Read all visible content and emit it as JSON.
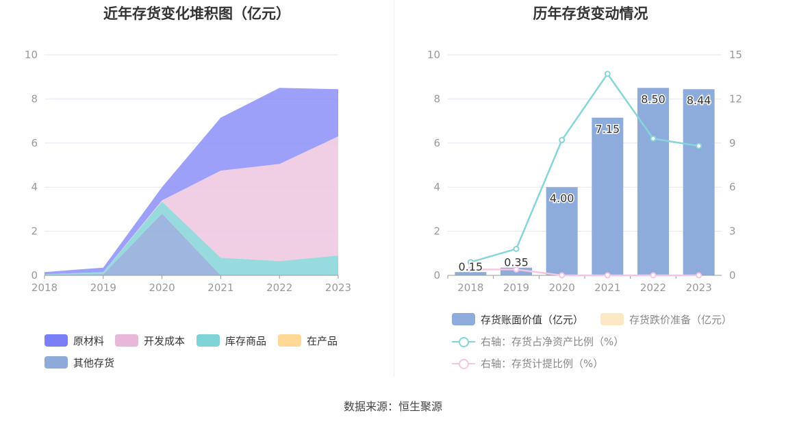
{
  "source_label": "数据来源：恒生聚源",
  "chart_data": [
    {
      "type": "area",
      "stacked": true,
      "title": "近年存货变化堆积图（亿元）",
      "x": [
        "2018",
        "2019",
        "2020",
        "2021",
        "2022",
        "2023"
      ],
      "ylim": [
        0,
        10
      ],
      "yticks": [
        0,
        2,
        4,
        6,
        8,
        10
      ],
      "grid": true,
      "legend_position": "bottom",
      "series": [
        {
          "name": "其他存货",
          "color": "#8eaad8",
          "values": [
            0.03,
            0.05,
            2.8,
            0,
            0,
            0
          ]
        },
        {
          "name": "库存商品",
          "color": "#86d5d8",
          "values": [
            0.02,
            0.1,
            0.55,
            0.8,
            0.65,
            0.9
          ]
        },
        {
          "name": "在产品",
          "color": "#ffd898",
          "values": [
            0,
            0,
            0,
            0,
            0,
            0
          ]
        },
        {
          "name": "开发成本",
          "color": "#edc7e0",
          "values": [
            0,
            0,
            0.05,
            3.95,
            4.4,
            5.4
          ]
        },
        {
          "name": "原材料",
          "color": "#8b8ff8",
          "values": [
            0.1,
            0.2,
            0.6,
            2.4,
            3.45,
            2.14
          ]
        }
      ],
      "legend_order": [
        "原材料",
        "开发成本",
        "库存商品",
        "在产品",
        "其他存货"
      ]
    },
    {
      "type": "bar",
      "title": "历年存货变动情况",
      "categories": [
        "2018",
        "2019",
        "2020",
        "2021",
        "2022",
        "2023"
      ],
      "ylim": [
        0,
        10
      ],
      "yticks": [
        0,
        2,
        4,
        6,
        8,
        10
      ],
      "y2lim": [
        0,
        15
      ],
      "y2ticks": [
        0,
        3,
        6,
        9,
        12,
        15
      ],
      "grid": true,
      "legend_position": "bottom",
      "series": [
        {
          "name": "存货账面价值（亿元）",
          "kind": "bar",
          "axis": "left",
          "color": "#8eacdb",
          "values": [
            0.15,
            0.35,
            4.0,
            7.15,
            8.5,
            8.44
          ],
          "labels": [
            "0.15",
            "0.35",
            "4.00",
            "7.15",
            "8.50",
            "8.44"
          ]
        },
        {
          "name": "存货跌价准备（亿元）",
          "kind": "bar",
          "axis": "left",
          "color": "#fde8c6",
          "values": [
            0,
            0,
            0,
            0,
            0,
            0
          ]
        },
        {
          "name": "右轴：存货占净资产比例（%）",
          "kind": "line",
          "axis": "right",
          "color": "#86d5d8",
          "values": [
            0.9,
            1.8,
            9.2,
            13.7,
            9.3,
            8.8
          ]
        },
        {
          "name": "右轴：存货计提比例（%）",
          "kind": "line",
          "axis": "right",
          "color": "#f4c6e4",
          "values": [
            0.4,
            0.4,
            0,
            0,
            0,
            0
          ]
        }
      ]
    }
  ]
}
